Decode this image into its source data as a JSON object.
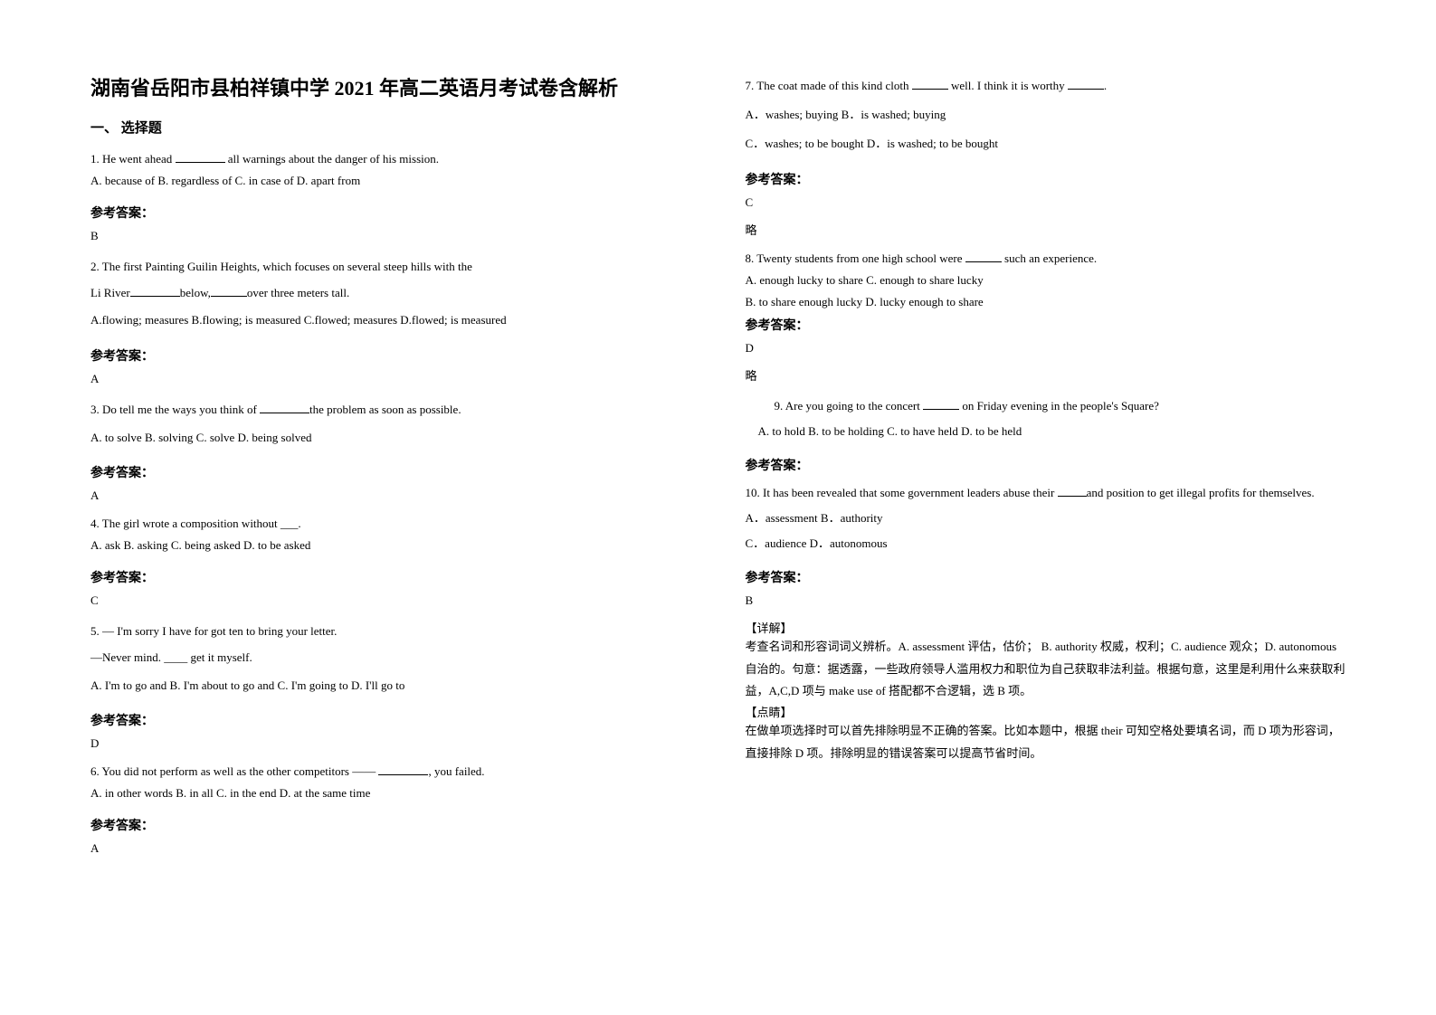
{
  "title": "湖南省岳阳市县柏祥镇中学 2021 年高二英语月考试卷含解析",
  "section_header": "一、 选择题",
  "answer_label": "参考答案：",
  "left": {
    "q1": {
      "stem_a": "1. He went ahead ",
      "stem_b": " all warnings about the danger of his mission.",
      "options": "  A. because of   B. regardless of   C. in case of   D. apart from",
      "answer": "B"
    },
    "q2": {
      "stem1": "2. The first Painting Guilin Heights, which focuses on several steep hills with the",
      "stem2_a": "Li River",
      "stem2_b": "below,",
      "stem2_c": "over three meters tall.",
      "options": "A.flowing; measures   B.flowing; is measured  C.flowed; measures D.flowed; is measured",
      "answer": "A"
    },
    "q3": {
      "stem_a": "3. Do tell me the ways you think of ",
      "stem_b": "the problem as soon as possible.",
      "options": "A. to solve   B. solving   C. solve   D. being solved",
      "answer": "A"
    },
    "q4": {
      "stem": "4. The girl wrote a composition without ___.",
      "options": "A. ask   B. asking   C. being asked   D. to be asked",
      "answer": "C"
    },
    "q5": {
      "stem1": "5. — I'm  sorry I have for got ten to bring your letter.",
      "stem2": "—Never mind. ____ get it myself.",
      "options": "A. I'm  to go and        B. I'm about to go and              C. I'm  going to        D. I'll go to",
      "answer": "D"
    },
    "q6": {
      "stem_a": "6. You did not perform as well as the other competitors —— ",
      "stem_b": ", you failed.",
      "options": "     A. in other words         B. in all               C. in the end                   D. at the same time",
      "answer": "A"
    }
  },
  "right": {
    "q7": {
      "stem_a": "7. The coat made of this kind cloth ",
      "stem_b": " well. I think it is worthy ",
      "stem_c": ".",
      "optA": "A．washes; buying",
      "optB": "B．is washed; buying",
      "optC": "C．washes; to be bought",
      "optD": "D．is washed; to be bought",
      "answer": "C",
      "note": "略"
    },
    "q8": {
      "stem_a": "8. Twenty students from one high school were ",
      "stem_b": " such an experience.",
      "options1": " A. enough lucky to share   C. enough to share lucky",
      "options2": "B. to share enough lucky   D. lucky enough to share",
      "answer": "D",
      "note": "略"
    },
    "q9": {
      "stem_a": "9. Are you going to the concert ",
      "stem_b": " on Friday evening in the people's Square?",
      "options": "  A. to hold      B. to be holding      C. to have held     D. to be held"
    },
    "q10": {
      "stem_a": "10. It has been revealed that some government leaders abuse their ",
      "stem_b": "and position to get illegal profits for themselves.",
      "options1": "A．assessment  B．authority",
      "options2": "C．audience   D．autonomous",
      "answer": "B",
      "detail_label": "【详解】",
      "detail_text": "考查名词和形容词词义辨析。A. assessment 评估，估价；             B. authority 权威，权利；C. audience 观众；D. autonomous 自治的。句意：据透露，一些政府领导人滥用权力和职位为自己获取非法利益。根据句意，这里是利用什么来获取利益，A,C,D 项与 make use of 搭配都不合逻辑，选 B 项。",
      "point_label": "【点睛】",
      "point_text": "在做单项选择时可以首先排除明显不正确的答案。比如本题中，根据 their 可知空格处要填名词，而 D 项为形容词，直接排除 D 项。排除明显的错误答案可以提高节省时间。"
    }
  }
}
